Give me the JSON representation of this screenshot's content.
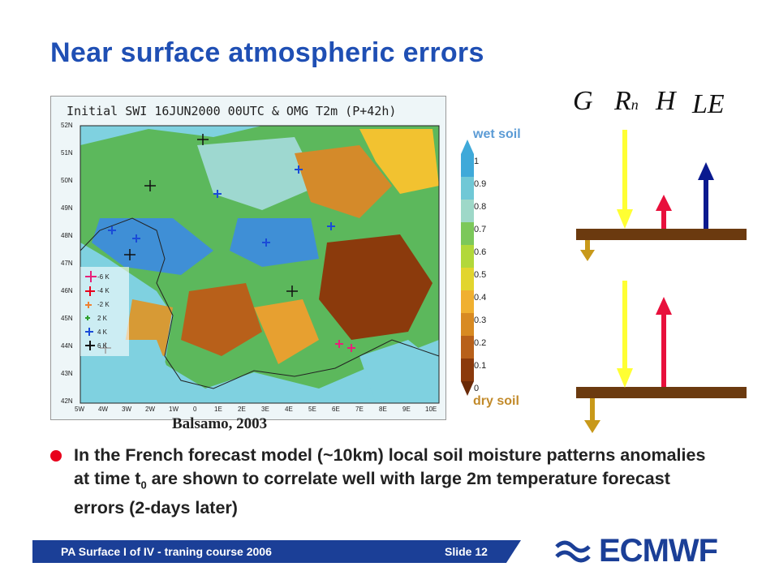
{
  "title": "Near surface atmospheric errors",
  "map": {
    "title": "Initial SWI 16JUN2000 00UTC & OMG T2m (P+42h)",
    "lat_labels": [
      "52N",
      "51N",
      "50N",
      "49N",
      "48N",
      "47N",
      "46N",
      "45N",
      "44N",
      "43N",
      "42N"
    ],
    "lon_labels": [
      "5W",
      "4W",
      "3W",
      "2W",
      "1W",
      "0",
      "1E",
      "2E",
      "3E",
      "4E",
      "5E",
      "6E",
      "7E",
      "8E",
      "9E",
      "10E"
    ],
    "legend": [
      "-6 K",
      "-4 K",
      "-2 K",
      "2 K",
      "4 K",
      "6 K"
    ],
    "colorbar_ticks": [
      "1",
      "0.9",
      "0.8",
      "0.7",
      "0.6",
      "0.5",
      "0.4",
      "0.3",
      "0.2",
      "0.1",
      "0"
    ],
    "wet_label": "wet soil",
    "dry_label": "dry soil",
    "credit": "Balsamo, 2003"
  },
  "flux_symbols": {
    "g": "G",
    "r": "R",
    "r_sub": "n",
    "h": "H",
    "le": "LE"
  },
  "bullet": "In the French forecast model (~10km) local soil moisture patterns anomalies at time t",
  "bullet_sub": "0",
  "bullet_rest": " are shown to correlate well with large 2m temperature forecast errors (2-days later)",
  "footer": {
    "left": "PA Surface I of IV - traning course 2006",
    "right": "Slide 12",
    "logo": "ECMWF"
  },
  "colors": {
    "title": "#1f4fb4",
    "footer": "#1b3f97",
    "bullet": "#e8001c"
  }
}
